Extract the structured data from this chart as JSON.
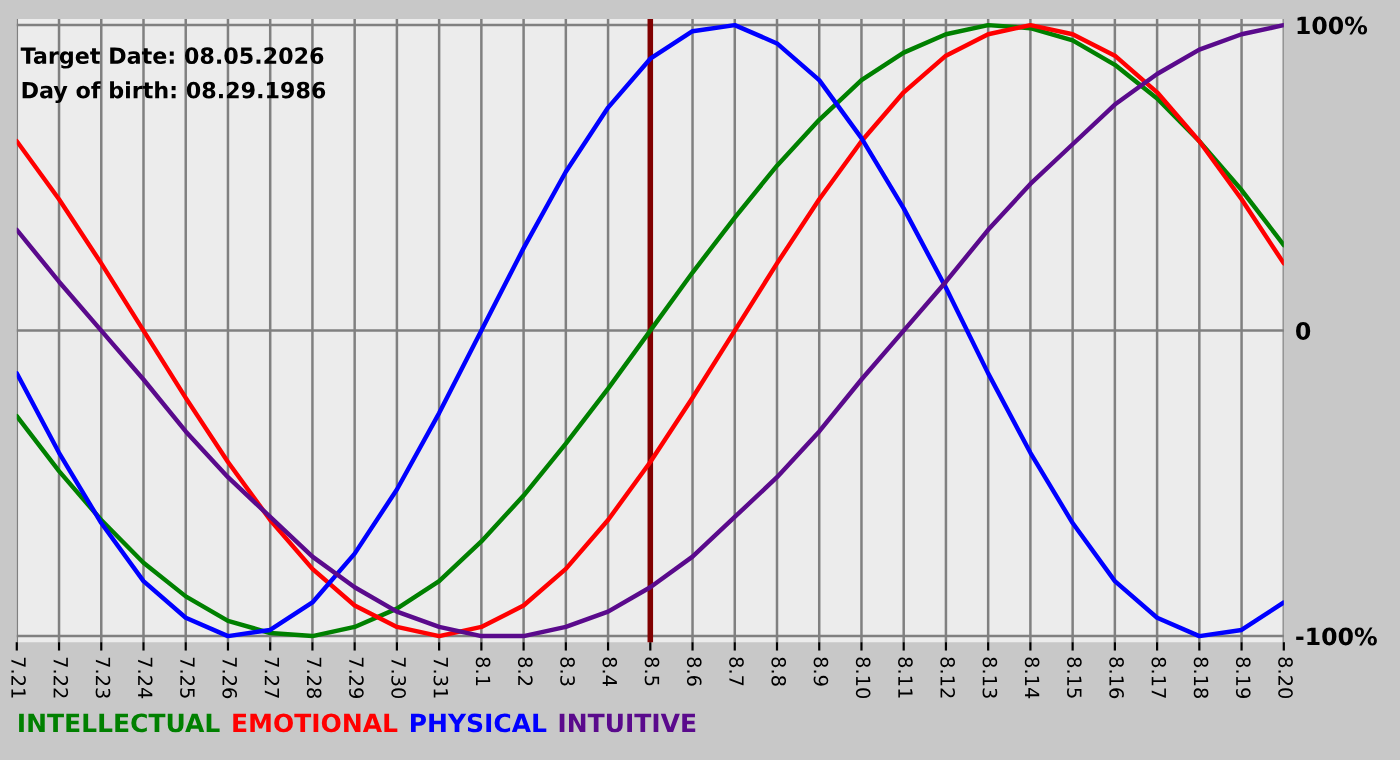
{
  "chart_data": {
    "type": "line",
    "categories": [
      "7.21",
      "7.22",
      "7.23",
      "7.24",
      "7.25",
      "7.26",
      "7.27",
      "7.28",
      "7.29",
      "7.30",
      "7.31",
      "8.1",
      "8.2",
      "8.3",
      "8.4",
      "8.5",
      "8.6",
      "8.7",
      "8.8",
      "8.9",
      "8.10",
      "8.11",
      "8.12",
      "8.13",
      "8.14",
      "8.15",
      "8.16",
      "8.17",
      "8.18",
      "8.19",
      "8.20"
    ],
    "series": [
      {
        "name": "INTELLECTUAL",
        "color": "#008000",
        "values": [
          -28,
          -46,
          -62,
          -76,
          -87,
          -95,
          -99,
          -100,
          -97,
          -91,
          -82,
          -69,
          -54,
          -37,
          -19,
          0,
          19,
          37,
          54,
          69,
          82,
          91,
          97,
          100,
          99,
          95,
          87,
          76,
          62,
          46,
          28
        ]
      },
      {
        "name": "EMOTIONAL",
        "color": "#ff0000",
        "values": [
          62,
          43,
          22,
          0,
          -22,
          -43,
          -62,
          -78,
          -90,
          -97,
          -100,
          -97,
          -90,
          -78,
          -62,
          -43,
          -22,
          0,
          22,
          43,
          62,
          78,
          90,
          97,
          100,
          97,
          90,
          78,
          62,
          43,
          22
        ]
      },
      {
        "name": "PHYSICAL",
        "color": "#0000ff",
        "values": [
          -14,
          -40,
          -63,
          -82,
          -94,
          -100,
          -98,
          -89,
          -73,
          -52,
          -27,
          0,
          27,
          52,
          73,
          89,
          98,
          100,
          94,
          82,
          63,
          40,
          14,
          -14,
          -40,
          -63,
          -82,
          -94,
          -100,
          -98,
          -89
        ]
      },
      {
        "name": "INTUITIVE",
        "color": "#5a0a8c",
        "values": [
          33,
          16,
          0,
          -16,
          -33,
          -48,
          -61,
          -74,
          -84,
          -92,
          -97,
          -100,
          -100,
          -97,
          -92,
          -84,
          -74,
          -61,
          -48,
          -33,
          -16,
          0,
          16,
          33,
          48,
          61,
          74,
          84,
          92,
          97,
          100
        ]
      }
    ],
    "ylim": [
      -102,
      102
    ],
    "yticks": [
      {
        "value": -100,
        "label": "-100%"
      },
      0,
      {
        "value": 100,
        "label": "100%"
      }
    ],
    "ref_lines": [
      {
        "axis": "x",
        "value": "8.5",
        "color": "#800000"
      }
    ],
    "annotations": [
      "Target Date: 08.05.2026",
      "Day of birth: 08.29.1986"
    ],
    "grid": true,
    "legend": "bottom"
  }
}
